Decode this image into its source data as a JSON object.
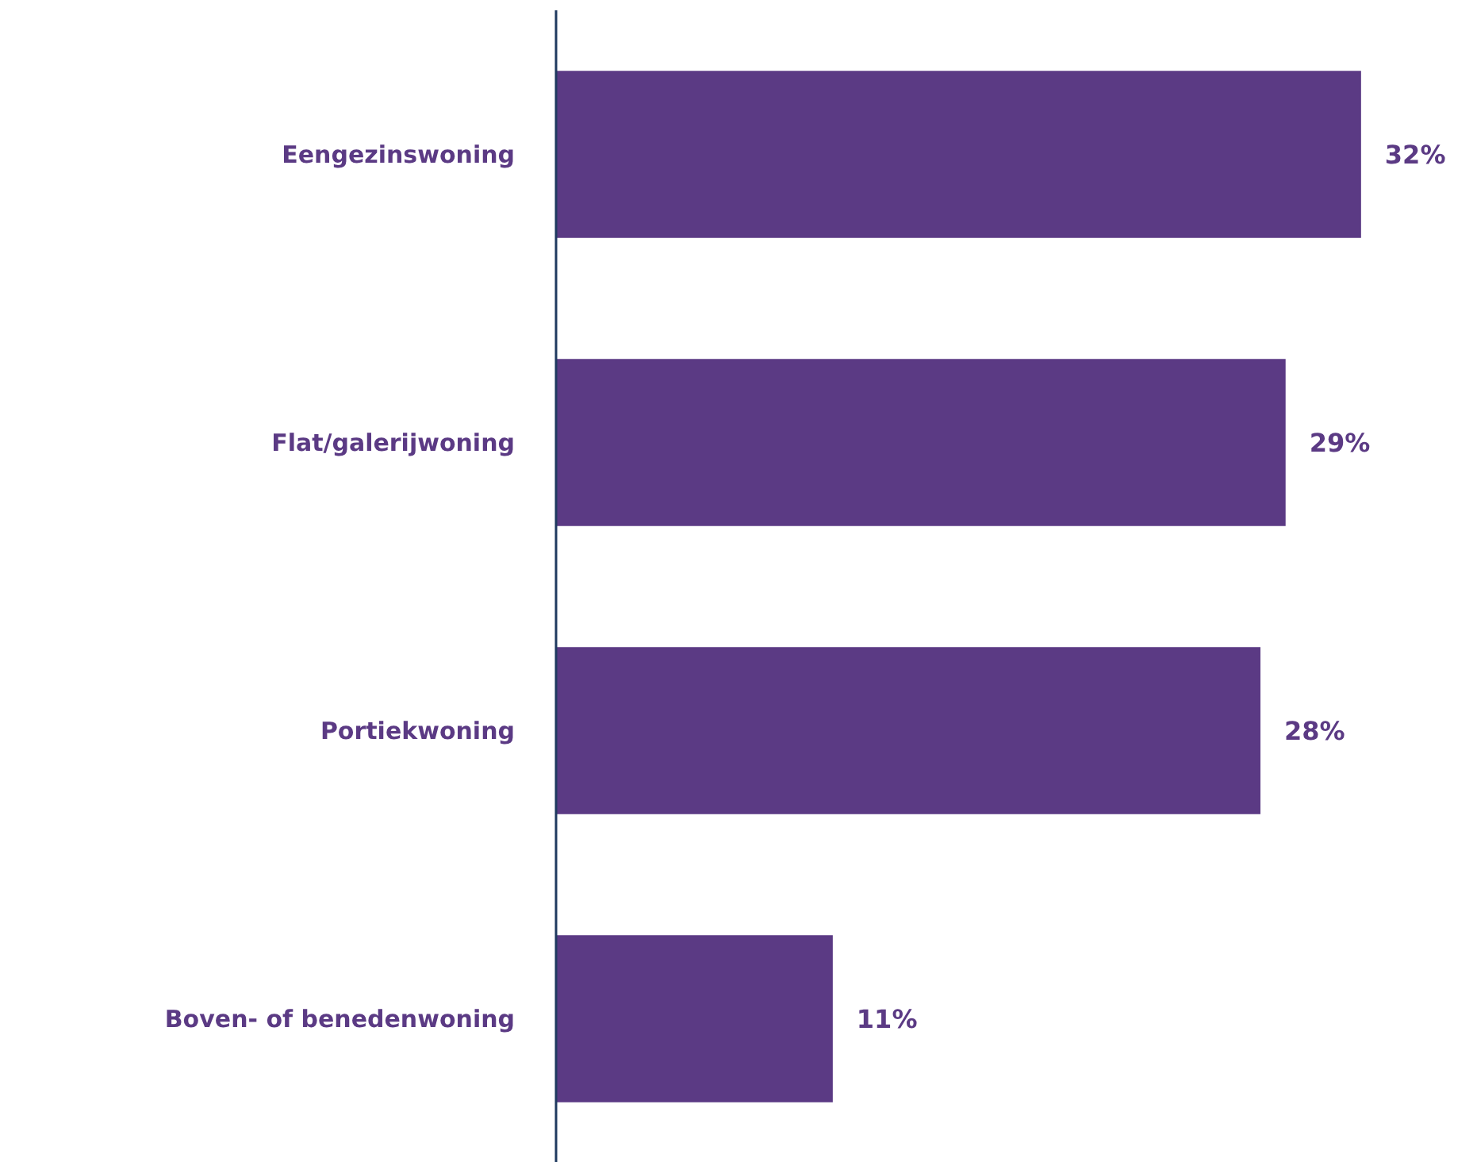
{
  "chart_data": {
    "type": "bar",
    "orientation": "horizontal",
    "categories": [
      "Eengezinswoning",
      "Flat/galerijwoning",
      "Portiekwoning",
      "Boven- of benedenwoning"
    ],
    "values": [
      32,
      29,
      28,
      11
    ],
    "color": "#5b3a84",
    "value_labels": [
      "32%",
      "29%",
      "28%",
      "11%"
    ],
    "grid": false
  }
}
